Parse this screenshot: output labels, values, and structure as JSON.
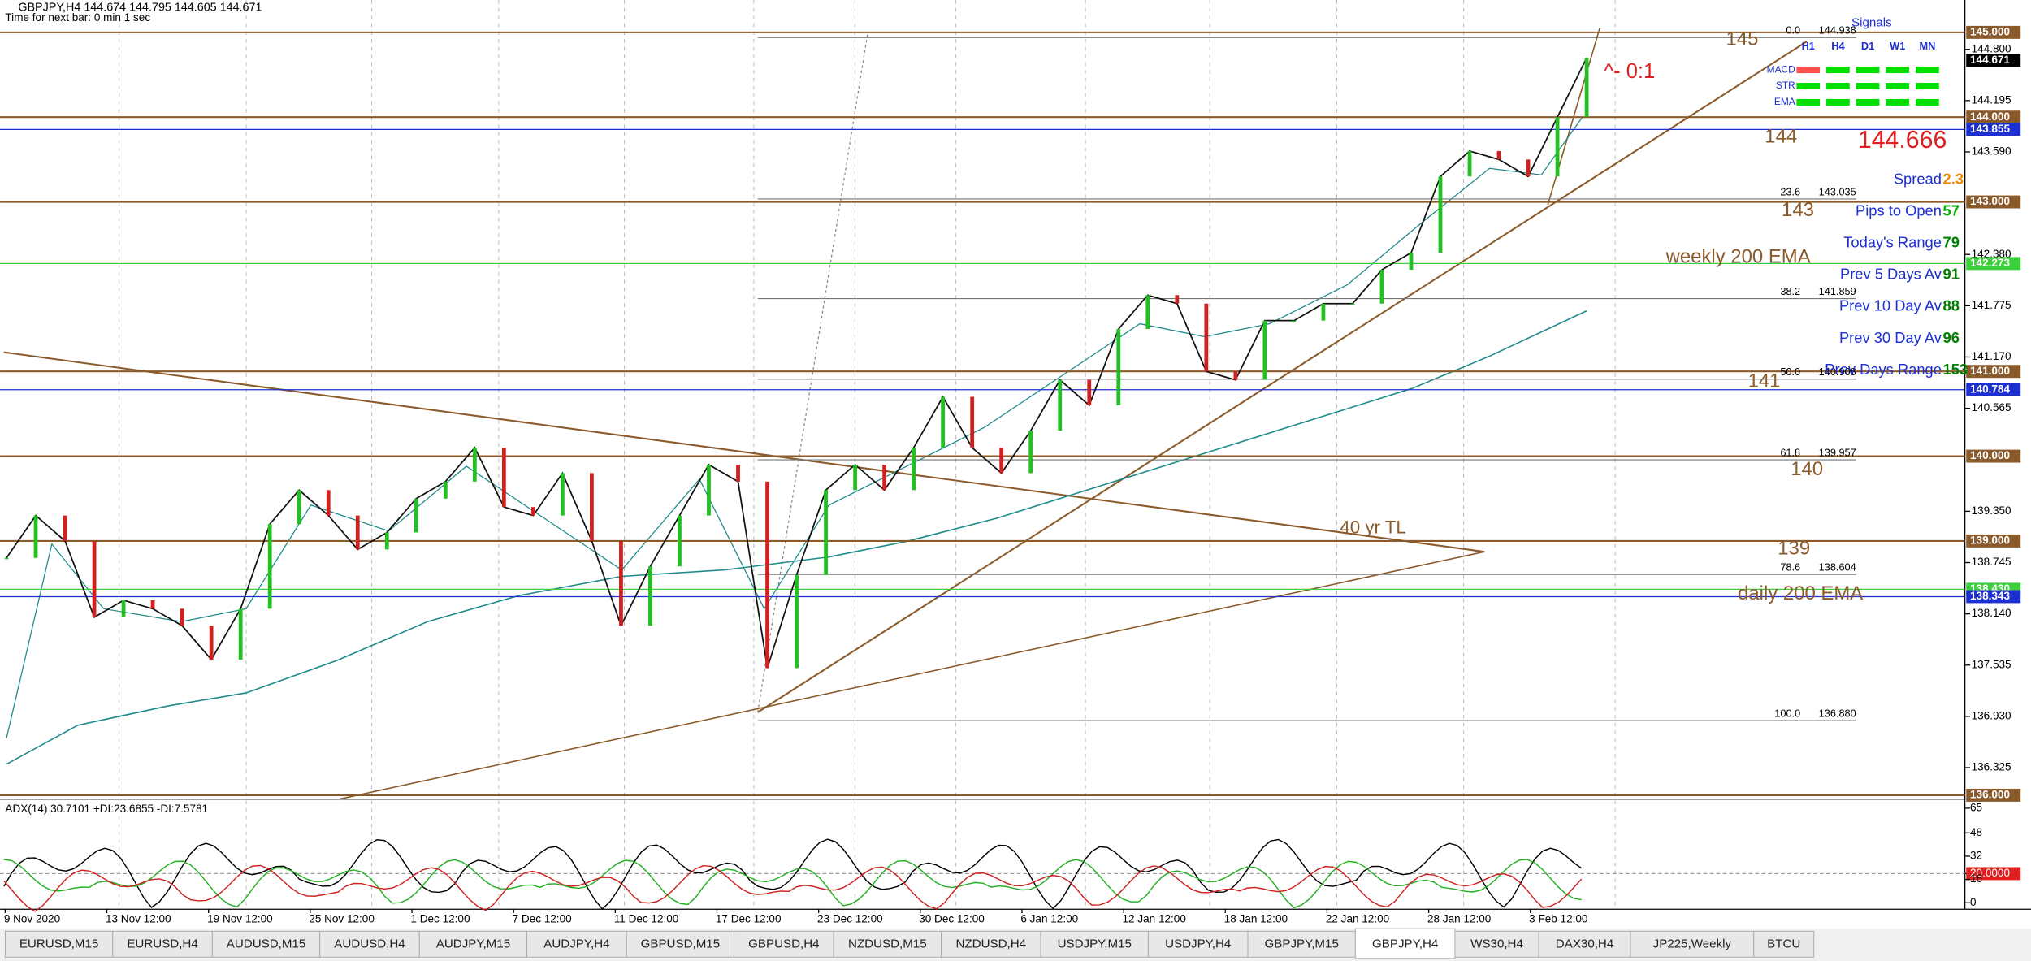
{
  "header": {
    "symbol_line": "GBPJPY,H4  144.674 144.795 144.605 144.671",
    "timer": "Time for next bar: 0 min 1 sec"
  },
  "price_scale": {
    "ylim": [
      136.0,
      145.0
    ],
    "ticks": [
      {
        "value": 144.8,
        "label": "144.800"
      },
      {
        "value": 144.195,
        "label": "144.195"
      },
      {
        "value": 143.59,
        "label": "143.590"
      },
      {
        "value": 142.38,
        "label": "142.380"
      },
      {
        "value": 141.775,
        "label": "141.775"
      },
      {
        "value": 141.17,
        "label": "141.170"
      },
      {
        "value": 140.565,
        "label": "140.565"
      },
      {
        "value": 139.35,
        "label": "139.350"
      },
      {
        "value": 138.745,
        "label": "138.745"
      },
      {
        "value": 138.14,
        "label": "138.140"
      },
      {
        "value": 137.535,
        "label": "137.535"
      },
      {
        "value": 136.93,
        "label": "136.930"
      },
      {
        "value": 136.325,
        "label": "136.325"
      }
    ],
    "boxes": [
      {
        "price": {
          "value": 145.0,
          "label": "145.000"
        },
        "color": "#8b5a2b",
        "line": true
      },
      {
        "price": 144.671,
        "color": "#000000",
        "line": false
      },
      {
        "price": {
          "value": 144.0,
          "label": "144.000"
        },
        "color": "#8b5a2b",
        "line": true
      },
      {
        "price": 143.855,
        "color": "#1c2fd0",
        "line": true
      },
      {
        "price": {
          "value": 143.0,
          "label": "143.000"
        },
        "color": "#8b5a2b",
        "line": true
      },
      {
        "price": 142.273,
        "color": "#3cd03c",
        "line": true
      },
      {
        "price": {
          "value": 141.0,
          "label": "141.000"
        },
        "color": "#8b5a2b",
        "line": true
      },
      {
        "price": 140.784,
        "color": "#1c2fd0",
        "line": true
      },
      {
        "price": {
          "value": 140.0,
          "label": "140.000"
        },
        "color": "#8b5a2b",
        "line": true
      },
      {
        "price": {
          "value": 139.0,
          "label": "139.000"
        },
        "color": "#8b5a2b",
        "line": true
      },
      {
        "price": {
          "value": 138.43,
          "label": "138.430"
        },
        "color": "#3cd03c",
        "line": true
      },
      {
        "price": 138.343,
        "color": "#1c2fd0",
        "line": true
      },
      {
        "price": {
          "value": 136.0,
          "label": "136.000"
        },
        "color": "#8b5a2b",
        "line": true
      }
    ]
  },
  "fibonacci": [
    {
      "level": "0.0",
      "price": 144.938
    },
    {
      "level": "23.6",
      "price": 143.035
    },
    {
      "level": "38.2",
      "price": 141.859
    },
    {
      "level": "50.0",
      "price": 140.908
    },
    {
      "level": "61.8",
      "price": 139.957
    },
    {
      "level": "78.6",
      "price": 138.604
    },
    {
      "level": "100.0",
      "price": {
        "value": 136.88,
        "label": "136.880"
      }
    }
  ],
  "price_path": [
    138.8,
    139.3,
    139.0,
    138.1,
    138.3,
    138.2,
    138.0,
    137.6,
    138.2,
    139.2,
    139.6,
    139.3,
    138.9,
    139.1,
    139.5,
    139.7,
    140.1,
    139.4,
    139.3,
    139.8,
    139.0,
    138.0,
    138.7,
    139.3,
    139.9,
    139.7,
    137.5,
    138.6,
    139.6,
    139.9,
    139.6,
    140.1,
    140.7,
    140.1,
    139.8,
    140.3,
    140.9,
    140.6,
    141.5,
    141.9,
    141.8,
    141.0,
    140.9,
    141.6,
    141.6,
    141.8,
    141.8,
    142.2,
    142.4,
    143.3,
    143.6,
    143.5,
    143.3,
    144.0,
    144.7
  ],
  "time_labels": [
    "9 Nov 2020",
    "13 Nov 12:00",
    "19 Nov 12:00",
    "25 Nov 12:00",
    "1 Dec 12:00",
    "7 Dec 12:00",
    "11 Dec 12:00",
    "17 Dec 12:00",
    "23 Dec 12:00",
    "30 Dec 12:00",
    "6 Jan 12:00",
    "12 Jan 12:00",
    "18 Jan 12:00",
    "22 Jan 12:00",
    "28 Jan 12:00",
    "3 Feb 12:00"
  ],
  "annotations": [
    {
      "text": "145",
      "color": "#8b5a2b"
    },
    {
      "text": "144",
      "color": "#8b5a2b"
    },
    {
      "text": "143",
      "color": "#8b5a2b"
    },
    {
      "text": "141",
      "color": "#8b5a2b"
    },
    {
      "text": "140",
      "color": "#8b5a2b"
    },
    {
      "text": "139",
      "color": "#8b5a2b"
    },
    {
      "text": "weekly 200 EMA",
      "color": "#8b5a2b"
    },
    {
      "text": "daily 200 EMA",
      "color": "#8b5a2b"
    },
    {
      "text": "40 yr TL",
      "color": "#8b5a2b"
    },
    {
      "text": "^- 0:1",
      "color": "#e02020"
    }
  ],
  "signals": {
    "title": "Signals",
    "timeframes": [
      "H1",
      "H4",
      "D1",
      "W1",
      "MN"
    ],
    "rows": [
      {
        "name": "MACD",
        "colors": [
          "#ff5050",
          "#00e000",
          "#00e000",
          "#00e000",
          "#00e000"
        ]
      },
      {
        "name": "STR",
        "colors": [
          "#00e000",
          "#00e000",
          "#00e000",
          "#00e000",
          "#00e000"
        ]
      },
      {
        "name": "EMA",
        "colors": [
          "#00e000",
          "#00e000",
          "#00e000",
          "#00e000",
          "#00e000"
        ]
      }
    ]
  },
  "bid": 144.666,
  "stats": [
    {
      "label": "Spread",
      "value": 2.3,
      "color": "#f08c00"
    },
    {
      "label": "Pips to Open",
      "value": 57,
      "color": "#00b000"
    },
    {
      "label": "Today's Range",
      "value": 79,
      "color": "#008000"
    },
    {
      "label": "Prev 5 Days Av",
      "value": 91,
      "color": "#008000"
    },
    {
      "label": "Prev 10 Day Av",
      "value": 88,
      "color": "#008000"
    },
    {
      "label": "Prev 30 Day Av",
      "value": 96,
      "color": "#008000"
    },
    {
      "label": "Prev Days Range",
      "value": 153,
      "color": "#008000"
    }
  ],
  "adx": {
    "header": "ADX(14) 30.7101 +DI:23.6855 -DI:7.5781",
    "ylim": [
      0,
      65
    ],
    "ticks": [
      65,
      48,
      32,
      {
        "value": 20,
        "label": "20.0000"
      },
      16,
      0
    ]
  },
  "tabs": [
    "EURUSD,M15",
    "EURUSD,H4",
    "AUDUSD,M15",
    "AUDUSD,H4",
    "AUDJPY,M15",
    "AUDJPY,H4",
    "GBPUSD,M15",
    "GBPUSD,H4",
    "NZDUSD,M15",
    "NZDUSD,H4",
    "USDJPY,M15",
    "USDJPY,H4",
    "GBPJPY,M15",
    "GBPJPY,H4",
    "WS30,H4",
    "DAX30,H4",
    "JP225,Weekly",
    "BTCU"
  ],
  "active_tab": 13
}
